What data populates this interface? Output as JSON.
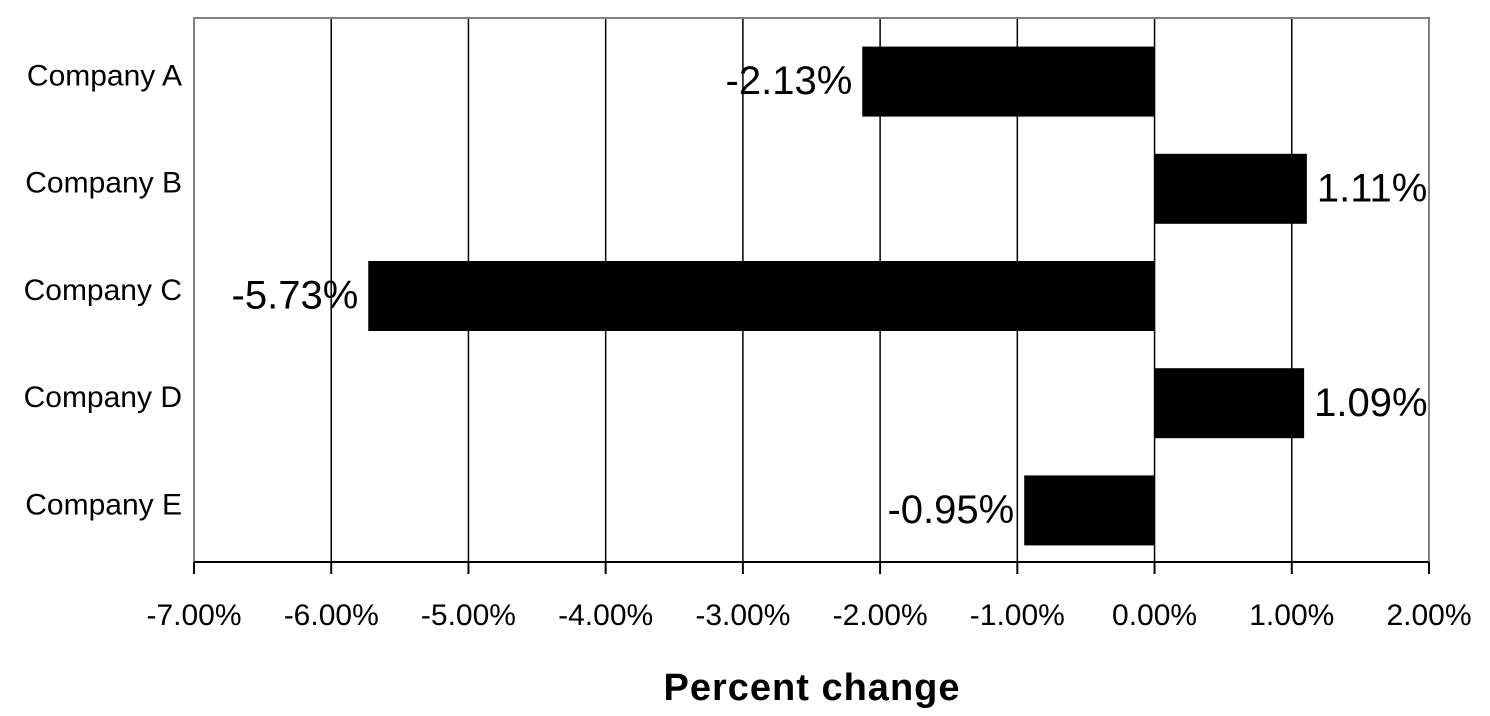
{
  "chart_data": {
    "type": "bar",
    "orientation": "horizontal",
    "categories": [
      "Company A",
      "Company B",
      "Company C",
      "Company D",
      "Company E"
    ],
    "values": [
      -2.13,
      1.11,
      -5.73,
      1.09,
      -0.95
    ],
    "data_labels": [
      "-2.13%",
      "1.11%",
      "-5.73%",
      "1.09%",
      "-0.95%"
    ],
    "xlabel": "Percent change",
    "ylabel": "",
    "xlim": [
      -7,
      2
    ],
    "x_ticks": [
      -7,
      -6,
      -5,
      -4,
      -3,
      -2,
      -1,
      0,
      1,
      2
    ],
    "x_tick_labels": [
      "-7.00%",
      "-6.00%",
      "-5.00%",
      "-4.00%",
      "-3.00%",
      "-2.00%",
      "-1.00%",
      "0.00%",
      "1.00%",
      "2.00%"
    ],
    "grid": true,
    "legend": "none",
    "bar_color": "#000000",
    "grid_color": "#000000",
    "frame_color": "#808080"
  }
}
